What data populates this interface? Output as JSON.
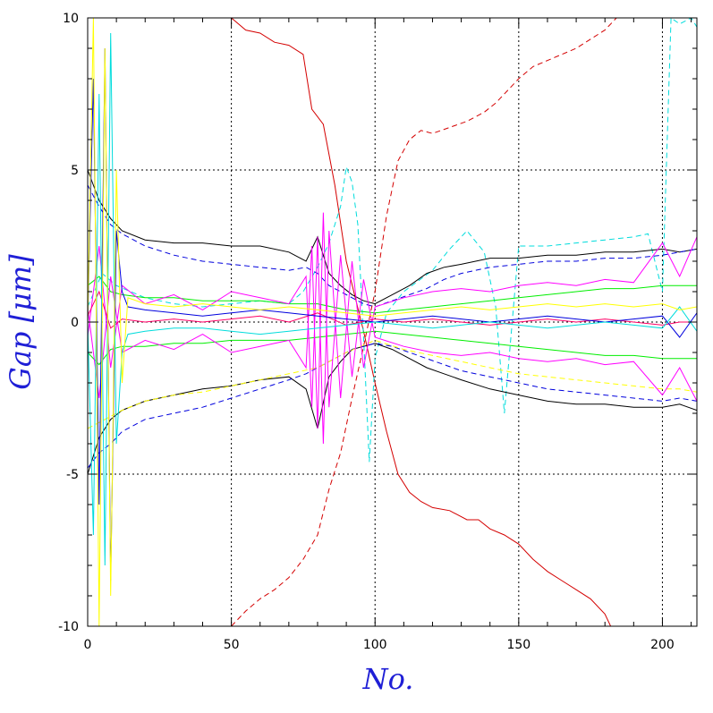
{
  "chart_data": {
    "type": "line",
    "title": "",
    "xlabel": "No.",
    "ylabel": "Gap [μm]",
    "xlim": [
      0,
      212
    ],
    "ylim": [
      -10,
      10
    ],
    "x_ticks": [
      0,
      50,
      100,
      150,
      200
    ],
    "y_ticks": [
      -10,
      -5,
      0,
      5,
      10
    ],
    "x_tick_labels": [
      "0",
      "50",
      "100",
      "150",
      "200"
    ],
    "y_tick_labels": [
      "-10",
      "-5",
      "0",
      "5",
      "10"
    ],
    "grid": true,
    "legend": "none",
    "label_color": "#1f1fd6",
    "series": [
      {
        "color": "#d40000",
        "dash": "solid",
        "x": [
          50,
          55,
          60,
          65,
          70,
          75,
          78,
          82,
          86,
          90,
          96,
          100,
          104,
          108,
          112,
          116,
          120,
          126,
          132,
          136,
          140,
          145,
          150,
          155,
          160,
          165,
          170,
          175,
          180,
          182
        ],
        "y": [
          10,
          9.6,
          9.5,
          9.2,
          9.1,
          8.8,
          7.0,
          6.5,
          4.5,
          2.0,
          -0.3,
          -2.0,
          -3.6,
          -5.0,
          -5.6,
          -5.9,
          -6.1,
          -6.2,
          -6.5,
          -6.5,
          -6.8,
          -7.0,
          -7.3,
          -7.8,
          -8.2,
          -8.5,
          -8.8,
          -9.1,
          -9.6,
          -10
        ]
      },
      {
        "color": "#d40000",
        "dash": "dashed",
        "x": [
          50,
          55,
          60,
          65,
          70,
          75,
          80,
          84,
          88,
          92,
          96,
          100,
          104,
          108,
          112,
          116,
          120,
          126,
          132,
          138,
          142,
          146,
          150,
          155,
          160,
          165,
          170,
          175,
          180,
          184
        ],
        "y": [
          -10,
          -9.5,
          -9.1,
          -8.8,
          -8.4,
          -7.8,
          -7.0,
          -5.5,
          -4.3,
          -2.5,
          -0.8,
          1.0,
          3.5,
          5.3,
          6.0,
          6.3,
          6.2,
          6.4,
          6.6,
          6.9,
          7.2,
          7.6,
          8.0,
          8.4,
          8.6,
          8.8,
          9.0,
          9.3,
          9.6,
          10
        ]
      },
      {
        "color": "#00dcdc",
        "dash": "dashed",
        "x": [
          0,
          5,
          10,
          20,
          30,
          40,
          50,
          60,
          70,
          75,
          80,
          84,
          88,
          90,
          92,
          94,
          96,
          98,
          100,
          104,
          110,
          120,
          126,
          132,
          138,
          142,
          145,
          150,
          160,
          170,
          180,
          190,
          195,
          200,
          203,
          206,
          210,
          212
        ],
        "y": [
          0.5,
          1.6,
          1.2,
          0.8,
          0.6,
          0.5,
          0.6,
          0.7,
          0.6,
          1.0,
          1.8,
          2.6,
          3.8,
          5.1,
          4.6,
          3.2,
          -0.5,
          -4.6,
          -1.2,
          0.3,
          1.0,
          1.7,
          2.4,
          3.0,
          2.3,
          0.5,
          -3.0,
          2.5,
          2.5,
          2.6,
          2.7,
          2.8,
          2.9,
          1.0,
          10.0,
          9.8,
          10.0,
          9.7
        ]
      },
      {
        "color": "#000000",
        "dash": "solid",
        "x": [
          0,
          4,
          8,
          12,
          20,
          30,
          40,
          50,
          60,
          70,
          76,
          80,
          84,
          88,
          92,
          96,
          100,
          106,
          112,
          118,
          124,
          130,
          140,
          150,
          160,
          170,
          180,
          190,
          200,
          206,
          212
        ],
        "y": [
          5.0,
          4.0,
          3.4,
          3.0,
          2.7,
          2.6,
          2.6,
          2.5,
          2.5,
          2.3,
          2.0,
          2.8,
          1.6,
          1.2,
          0.9,
          0.7,
          0.6,
          0.9,
          1.2,
          1.6,
          1.8,
          1.9,
          2.1,
          2.1,
          2.2,
          2.2,
          2.3,
          2.3,
          2.4,
          2.3,
          2.4
        ]
      },
      {
        "color": "#000000",
        "dash": "solid",
        "x": [
          0,
          4,
          8,
          12,
          20,
          30,
          40,
          50,
          60,
          70,
          76,
          80,
          84,
          88,
          92,
          96,
          100,
          106,
          112,
          118,
          124,
          130,
          140,
          150,
          160,
          170,
          180,
          190,
          200,
          206,
          212
        ],
        "y": [
          -5.0,
          -3.8,
          -3.2,
          -2.9,
          -2.6,
          -2.4,
          -2.2,
          -2.1,
          -1.9,
          -1.8,
          -2.2,
          -3.5,
          -1.8,
          -1.3,
          -0.9,
          -0.8,
          -0.7,
          -0.9,
          -1.2,
          -1.5,
          -1.7,
          -1.9,
          -2.2,
          -2.4,
          -2.6,
          -2.7,
          -2.7,
          -2.8,
          -2.8,
          -2.7,
          -2.9
        ]
      },
      {
        "color": "#0000dd",
        "dash": "dashed",
        "x": [
          0,
          4,
          8,
          12,
          20,
          30,
          40,
          50,
          60,
          70,
          76,
          80,
          84,
          88,
          92,
          96,
          100,
          106,
          112,
          118,
          124,
          130,
          140,
          150,
          160,
          170,
          180,
          190,
          200,
          206,
          212
        ],
        "y": [
          4.5,
          3.8,
          3.2,
          2.9,
          2.5,
          2.2,
          2.0,
          1.9,
          1.8,
          1.7,
          1.8,
          1.6,
          1.2,
          1.0,
          0.8,
          0.6,
          0.5,
          0.7,
          0.9,
          1.1,
          1.4,
          1.6,
          1.8,
          1.9,
          2.0,
          2.0,
          2.1,
          2.1,
          2.2,
          2.3,
          2.4
        ]
      },
      {
        "color": "#0000dd",
        "dash": "dashed",
        "x": [
          0,
          4,
          8,
          12,
          20,
          30,
          40,
          50,
          60,
          70,
          76,
          80,
          84,
          88,
          92,
          96,
          100,
          106,
          112,
          118,
          124,
          130,
          140,
          150,
          160,
          170,
          180,
          190,
          200,
          206,
          212
        ],
        "y": [
          -4.8,
          -4.3,
          -4.0,
          -3.6,
          -3.2,
          -3.0,
          -2.8,
          -2.5,
          -2.2,
          -1.9,
          -1.7,
          -1.5,
          -1.3,
          -1.1,
          -0.9,
          -0.8,
          -0.7,
          -0.8,
          -1.0,
          -1.2,
          -1.4,
          -1.6,
          -1.8,
          -2.0,
          -2.2,
          -2.3,
          -2.4,
          -2.5,
          -2.6,
          -2.5,
          -2.6
        ]
      },
      {
        "color": "#ffff00",
        "dash": "dashed",
        "x": [
          0,
          4,
          8,
          12,
          20,
          30,
          40,
          50,
          60,
          70,
          80,
          90,
          100,
          110,
          120,
          130,
          140,
          150,
          160,
          170,
          180,
          190,
          200,
          206,
          212
        ],
        "y": [
          -3.5,
          -3.3,
          -3.1,
          -2.9,
          -2.6,
          -2.4,
          -2.3,
          -2.1,
          -1.9,
          -1.7,
          -1.5,
          -1.0,
          -0.6,
          -0.9,
          -1.1,
          -1.3,
          -1.5,
          -1.7,
          -1.8,
          -1.9,
          -2.0,
          -2.1,
          -2.2,
          -2.2,
          -2.3
        ]
      },
      {
        "color": "#00ee00",
        "dash": "solid",
        "x": [
          0,
          4,
          8,
          12,
          20,
          30,
          40,
          50,
          60,
          70,
          80,
          90,
          100,
          110,
          120,
          130,
          140,
          150,
          160,
          170,
          180,
          190,
          200,
          206,
          212
        ],
        "y": [
          1.2,
          1.5,
          1.0,
          0.9,
          0.8,
          0.8,
          0.7,
          0.7,
          0.7,
          0.6,
          0.6,
          0.4,
          0.3,
          0.4,
          0.5,
          0.6,
          0.7,
          0.8,
          0.9,
          1.0,
          1.1,
          1.1,
          1.2,
          1.2,
          1.2
        ]
      },
      {
        "color": "#00ee00",
        "dash": "solid",
        "x": [
          0,
          4,
          8,
          12,
          20,
          30,
          40,
          50,
          60,
          70,
          80,
          90,
          100,
          110,
          120,
          130,
          140,
          150,
          160,
          170,
          180,
          190,
          200,
          206,
          212
        ],
        "y": [
          -1.0,
          -1.4,
          -0.9,
          -0.8,
          -0.8,
          -0.7,
          -0.7,
          -0.6,
          -0.6,
          -0.6,
          -0.5,
          -0.4,
          -0.3,
          -0.4,
          -0.5,
          -0.6,
          -0.7,
          -0.8,
          -0.9,
          -1.0,
          -1.1,
          -1.1,
          -1.2,
          -1.2,
          -1.2
        ]
      },
      {
        "color": "#ff00ff",
        "dash": "solid",
        "x": [
          0,
          4,
          8,
          12,
          20,
          30,
          40,
          50,
          60,
          70,
          76,
          78,
          80,
          82,
          84,
          88,
          92,
          96,
          100,
          110,
          120,
          130,
          140,
          150,
          160,
          170,
          180,
          190,
          200,
          206,
          212
        ],
        "y": [
          -0.5,
          2.5,
          -1.5,
          1.2,
          0.6,
          0.9,
          0.4,
          1.0,
          0.8,
          0.6,
          1.5,
          -2.8,
          2.8,
          -4.0,
          3.0,
          -2.5,
          2.0,
          -1.5,
          0.5,
          0.8,
          1.0,
          1.1,
          1.0,
          1.2,
          1.3,
          1.2,
          1.4,
          1.3,
          2.6,
          1.5,
          2.8
        ]
      },
      {
        "color": "#ff00ff",
        "dash": "solid",
        "x": [
          0,
          4,
          8,
          12,
          20,
          30,
          40,
          50,
          60,
          70,
          76,
          78,
          80,
          82,
          84,
          88,
          92,
          96,
          100,
          110,
          120,
          130,
          140,
          150,
          160,
          170,
          180,
          190,
          200,
          206,
          212
        ],
        "y": [
          0.5,
          -2.5,
          1.5,
          -1.0,
          -0.6,
          -0.9,
          -0.4,
          -1.0,
          -0.8,
          -0.6,
          -1.5,
          2.5,
          -3.5,
          3.6,
          -2.8,
          2.2,
          -1.8,
          1.4,
          -0.5,
          -0.8,
          -1.0,
          -1.1,
          -1.0,
          -1.2,
          -1.3,
          -1.2,
          -1.4,
          -1.3,
          -2.4,
          -1.5,
          -2.6
        ]
      },
      {
        "color": "#ff0066",
        "dash": "solid",
        "x": [
          0,
          4,
          8,
          12,
          20,
          30,
          40,
          50,
          60,
          70,
          80,
          90,
          100,
          110,
          120,
          130,
          140,
          150,
          160,
          170,
          180,
          190,
          200,
          206,
          212
        ],
        "y": [
          0.2,
          1.0,
          -0.2,
          0.1,
          0.0,
          0.1,
          0.0,
          0.1,
          0.2,
          0.0,
          0.3,
          -0.1,
          0.1,
          0.0,
          0.1,
          0.0,
          -0.1,
          0.0,
          0.1,
          0.0,
          0.1,
          0.0,
          -0.1,
          0.0,
          0.0
        ]
      },
      {
        "color": "#0000dd",
        "dash": "solid",
        "x": [
          0,
          2,
          4,
          6,
          8,
          10,
          12,
          14,
          20,
          30,
          40,
          50,
          60,
          70,
          80,
          90,
          100,
          110,
          120,
          130,
          140,
          150,
          160,
          170,
          180,
          190,
          200,
          206,
          212
        ],
        "y": [
          0,
          8.0,
          -6.0,
          9.0,
          -8.5,
          3.0,
          1.0,
          0.5,
          0.4,
          0.3,
          0.2,
          0.3,
          0.4,
          0.3,
          0.2,
          0.1,
          0.0,
          0.1,
          0.2,
          0.1,
          0.0,
          0.1,
          0.2,
          0.1,
          0.0,
          0.1,
          0.2,
          -0.5,
          0.3
        ]
      },
      {
        "color": "#00dcdc",
        "dash": "solid",
        "x": [
          0,
          2,
          4,
          6,
          8,
          10,
          12,
          14,
          20,
          30,
          40,
          50,
          60,
          70,
          80,
          90,
          100,
          110,
          120,
          130,
          140,
          150,
          160,
          170,
          180,
          190,
          200,
          206,
          212
        ],
        "y": [
          0,
          -7.0,
          7.5,
          -8.0,
          9.5,
          -4.0,
          -1.0,
          -0.4,
          -0.3,
          -0.2,
          -0.2,
          -0.3,
          -0.4,
          -0.3,
          -0.2,
          -0.1,
          0.0,
          -0.1,
          -0.2,
          -0.1,
          0.0,
          -0.1,
          -0.2,
          -0.1,
          0.0,
          -0.1,
          -0.2,
          0.5,
          -0.3
        ]
      },
      {
        "color": "#ffff00",
        "dash": "solid",
        "x": [
          0,
          2,
          4,
          6,
          8,
          10,
          12,
          14,
          20,
          30,
          40,
          50,
          60,
          70,
          80,
          90,
          100,
          110,
          120,
          130,
          140,
          150,
          160,
          170,
          180,
          190,
          200,
          206,
          212
        ],
        "y": [
          0,
          10.0,
          -10.0,
          9.0,
          -9.0,
          5.0,
          -2.0,
          0.8,
          0.6,
          0.5,
          0.6,
          0.5,
          0.4,
          0.5,
          0.4,
          0.3,
          0.2,
          0.3,
          0.4,
          0.5,
          0.4,
          0.5,
          0.6,
          0.5,
          0.6,
          0.5,
          0.6,
          0.4,
          0.5
        ]
      }
    ]
  }
}
